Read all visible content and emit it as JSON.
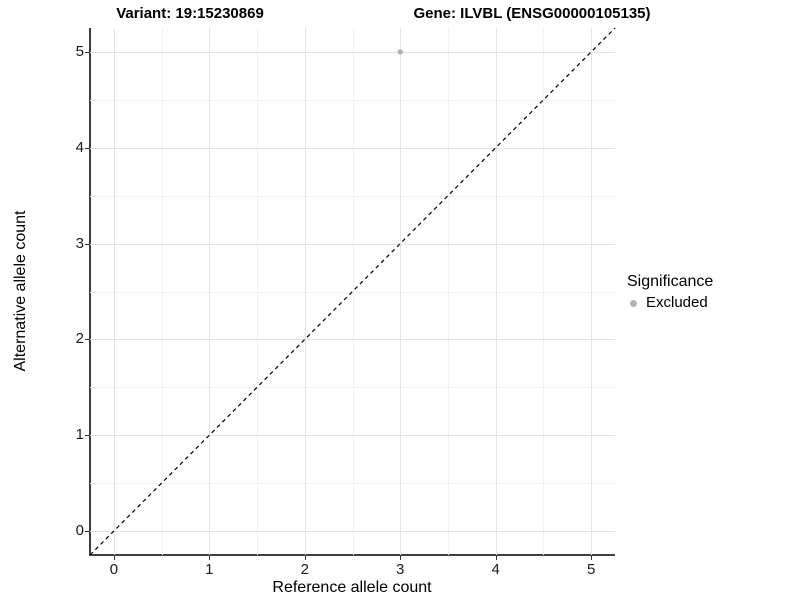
{
  "chart_data": {
    "type": "scatter",
    "titles": {
      "left": "Variant: 19:15230869",
      "right": "Gene: ILVBL (ENSG00000105135)"
    },
    "xlabel": "Reference allele count",
    "ylabel": "Alternative allele count",
    "xlim": [
      -0.25,
      5.25
    ],
    "ylim": [
      -0.25,
      5.25
    ],
    "x_major_ticks": [
      0,
      1,
      2,
      3,
      4,
      5
    ],
    "y_major_ticks": [
      0,
      1,
      2,
      3,
      4,
      5
    ],
    "x_minor_ticks": [
      0.5,
      1.5,
      2.5,
      3.5,
      4.5
    ],
    "y_minor_ticks": [
      0.5,
      1.5,
      2.5,
      3.5,
      4.5
    ],
    "grid": true,
    "reference_line": {
      "type": "identity-diagonal",
      "style": "dashed",
      "from": [
        -0.25,
        -0.25
      ],
      "to": [
        5.25,
        5.25
      ],
      "color": "#000000"
    },
    "series": [
      {
        "name": "Excluded",
        "color": "#b3b3b3",
        "points": [
          {
            "x": 3,
            "y": 5
          }
        ]
      }
    ],
    "legend": {
      "title": "Significance",
      "position": "right",
      "entries": [
        {
          "label": "Excluded",
          "color": "#b3b3b3"
        }
      ]
    }
  },
  "colors": {
    "background": "#ffffff",
    "grid_major": "#e3e3e3",
    "grid_minor": "#f1f1f1",
    "axis_line": "#3f3f3f",
    "tick_mark": "#333333",
    "text": "#000000"
  }
}
